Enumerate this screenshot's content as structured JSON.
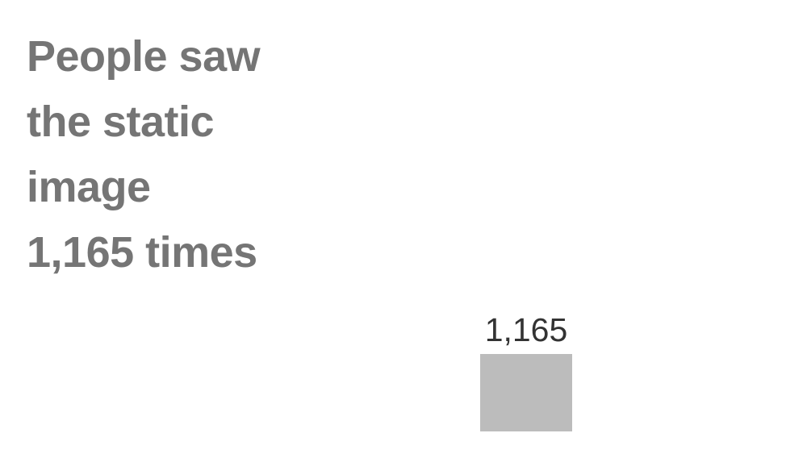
{
  "headline": {
    "lines": [
      "People saw",
      "the static",
      "image",
      "1,165 times"
    ]
  },
  "chart_data": {
    "type": "bar",
    "categories": [
      ""
    ],
    "values": [
      1165
    ],
    "data_labels": [
      "1,165"
    ],
    "colors": {
      "bar": "#bcbcbc",
      "label": "#333333",
      "headline": "#757575"
    },
    "grid": false,
    "legend": "none"
  }
}
